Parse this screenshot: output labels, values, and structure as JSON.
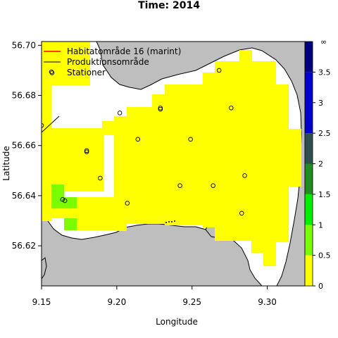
{
  "title": "Time: 2014",
  "axes": {
    "xlabel": "Longitude",
    "ylabel": "Latitude",
    "xlim": [
      9.15,
      9.325
    ],
    "ylim": [
      56.604,
      56.7015
    ],
    "x_ticks": [
      9.15,
      9.2,
      9.25,
      9.3
    ],
    "x_tick_labels": [
      "9.15",
      "9.20",
      "9.25",
      "9.30"
    ],
    "y_ticks": [
      56.62,
      56.64,
      56.66,
      56.68,
      56.7
    ],
    "y_tick_labels": [
      "56.62",
      "56.64",
      "56.66",
      "56.68",
      "56.70"
    ]
  },
  "legend": {
    "placement": "top-left",
    "items": [
      {
        "label": "Habitatområde 16 (marint)",
        "kind": "line",
        "color": "#ff0000"
      },
      {
        "label": "Produktionsområde",
        "kind": "line",
        "color": "#000000"
      },
      {
        "label": "Stationer",
        "kind": "circle",
        "color": "#000000"
      }
    ]
  },
  "colors": {
    "land": "#bebebe",
    "water": "#ffffff",
    "border": "#000000"
  },
  "colorbar": {
    "ticks": [
      0,
      0.5,
      1,
      1.5,
      2,
      2.5,
      3,
      3.5
    ],
    "tick_labels": [
      "0",
      "0.5",
      "1",
      "1.5",
      "2",
      "2.5",
      "3",
      "3.5"
    ],
    "inf_label": "∞",
    "bands": [
      {
        "from": 0,
        "to": 0.5,
        "color": "#ffff00"
      },
      {
        "from": 0.5,
        "to": 1,
        "color": "#7cfc00"
      },
      {
        "from": 1,
        "to": 1.5,
        "color": "#00ee00"
      },
      {
        "from": 1.5,
        "to": 2,
        "color": "#228b22"
      },
      {
        "from": 2,
        "to": 2.5,
        "color": "#2f4f4f"
      },
      {
        "from": 2.5,
        "to": 3.5,
        "color": "#0000cd"
      },
      {
        "from": 3.5,
        "to": "inf",
        "color": "#000080"
      }
    ]
  },
  "chart_data": {
    "type": "heatmap",
    "title": "Time: 2014",
    "xlabel": "Longitude",
    "ylabel": "Latitude",
    "colorbar_range": [
      0,
      "inf"
    ],
    "stations": [
      {
        "lon": 9.157,
        "lat": 56.689
      },
      {
        "lon": 9.15,
        "lat": 56.668
      },
      {
        "lon": 9.18,
        "lat": 56.658
      },
      {
        "lon": 9.18,
        "lat": 56.6575
      },
      {
        "lon": 9.202,
        "lat": 56.673
      },
      {
        "lon": 9.214,
        "lat": 56.6625
      },
      {
        "lon": 9.229,
        "lat": 56.675
      },
      {
        "lon": 9.229,
        "lat": 56.6745
      },
      {
        "lon": 9.249,
        "lat": 56.6625
      },
      {
        "lon": 9.268,
        "lat": 56.69
      },
      {
        "lon": 9.276,
        "lat": 56.675
      },
      {
        "lon": 9.189,
        "lat": 56.647
      },
      {
        "lon": 9.207,
        "lat": 56.637
      },
      {
        "lon": 9.242,
        "lat": 56.644
      },
      {
        "lon": 9.264,
        "lat": 56.644
      },
      {
        "lon": 9.285,
        "lat": 56.648
      },
      {
        "lon": 9.283,
        "lat": 56.633
      },
      {
        "lon": 9.164,
        "lat": 56.6385
      },
      {
        "lon": 9.1655,
        "lat": 56.638
      }
    ]
  }
}
